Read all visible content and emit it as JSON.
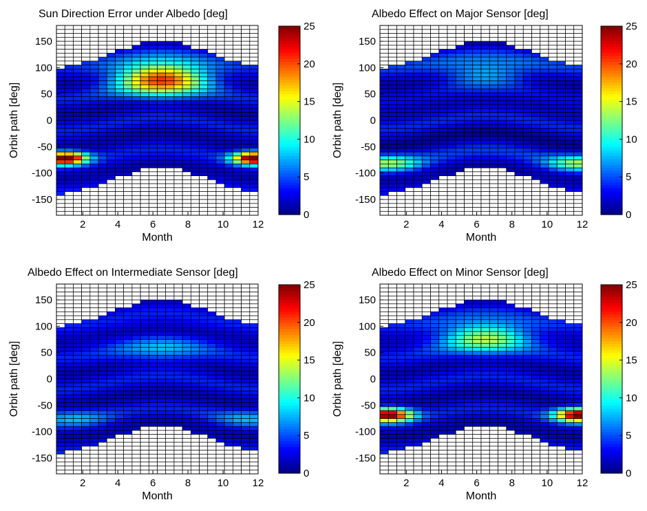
{
  "chart_data": [
    {
      "type": "heatmap",
      "title": "Sun Direction Error under Albedo [deg]",
      "xlabel": "Month",
      "ylabel": "Orbit path [deg]",
      "xlim": [
        0.5,
        12
      ],
      "ylim": [
        -180,
        180
      ],
      "xticks": [
        2,
        4,
        6,
        8,
        10,
        12
      ],
      "yticks": [
        150,
        100,
        50,
        0,
        -50,
        -100,
        -150
      ],
      "colorbar": {
        "range": [
          0,
          25
        ],
        "ticks": [
          0,
          5,
          10,
          15,
          20,
          25
        ],
        "colormap": "jet"
      },
      "grid": true,
      "band": {
        "lower_deg": {
          "jan": -140,
          "jul": -90
        },
        "upper_deg": {
          "jan": 100,
          "jul": 150
        }
      },
      "features": [
        {
          "month": 6.5,
          "orbit_deg": 80,
          "value": 18,
          "month_width": 2.6,
          "orbit_width": 32
        },
        {
          "month": 1.0,
          "orbit_deg": -72,
          "value": 24,
          "month_width": 1.2,
          "orbit_width": 12
        },
        {
          "month": 11.8,
          "orbit_deg": -72,
          "value": 24,
          "month_width": 1.2,
          "orbit_width": 12
        }
      ]
    },
    {
      "type": "heatmap",
      "title": "Albedo Effect on Major Sensor [deg]",
      "xlabel": "Month",
      "ylabel": "Orbit path [deg]",
      "xlim": [
        0.5,
        12
      ],
      "ylim": [
        -180,
        180
      ],
      "xticks": [
        2,
        4,
        6,
        8,
        10,
        12
      ],
      "yticks": [
        150,
        100,
        50,
        0,
        -50,
        -100,
        -150
      ],
      "colorbar": {
        "range": [
          0,
          25
        ],
        "ticks": [
          0,
          5,
          10,
          15,
          20,
          25
        ],
        "colormap": "jet"
      },
      "grid": true,
      "band": {
        "lower_deg": {
          "jan": -140,
          "jul": -90
        },
        "upper_deg": {
          "jan": 100,
          "jul": 150
        }
      },
      "features": [
        {
          "month": 6.5,
          "orbit_deg": 90,
          "value": 6,
          "month_width": 2.6,
          "orbit_width": 25
        },
        {
          "month": 1.0,
          "orbit_deg": -82,
          "value": 9,
          "month_width": 1.8,
          "orbit_width": 15
        },
        {
          "month": 11.8,
          "orbit_deg": -82,
          "value": 9,
          "month_width": 1.8,
          "orbit_width": 15
        }
      ]
    },
    {
      "type": "heatmap",
      "title": "Albedo Effect on Intermediate Sensor [deg]",
      "xlabel": "Month",
      "ylabel": "Orbit path [deg]",
      "xlim": [
        0.5,
        12
      ],
      "ylim": [
        -180,
        180
      ],
      "xticks": [
        2,
        4,
        6,
        8,
        10,
        12
      ],
      "yticks": [
        150,
        100,
        50,
        0,
        -50,
        -100,
        -150
      ],
      "colorbar": {
        "range": [
          0,
          25
        ],
        "ticks": [
          0,
          5,
          10,
          15,
          20,
          25
        ],
        "colormap": "jet"
      },
      "grid": true,
      "band": {
        "lower_deg": {
          "jan": -140,
          "jul": -90
        },
        "upper_deg": {
          "jan": 100,
          "jul": 150
        }
      },
      "features": [
        {
          "month": 6.5,
          "orbit_deg": 55,
          "value": 4.5,
          "month_width": 2.6,
          "orbit_width": 25
        },
        {
          "month": 1.5,
          "orbit_deg": -75,
          "value": 4,
          "month_width": 2,
          "orbit_width": 18
        },
        {
          "month": 11.5,
          "orbit_deg": -75,
          "value": 4,
          "month_width": 2,
          "orbit_width": 18
        }
      ]
    },
    {
      "type": "heatmap",
      "title": "Albedo Effect on Minor Sensor [deg]",
      "xlabel": "Month",
      "ylabel": "Orbit path [deg]",
      "xlim": [
        0.5,
        12
      ],
      "ylim": [
        -180,
        180
      ],
      "xticks": [
        2,
        4,
        6,
        8,
        10,
        12
      ],
      "yticks": [
        150,
        100,
        50,
        0,
        -50,
        -100,
        -150
      ],
      "colorbar": {
        "range": [
          0,
          25
        ],
        "ticks": [
          0,
          5,
          10,
          15,
          20,
          25
        ],
        "colormap": "jet"
      },
      "grid": true,
      "band": {
        "lower_deg": {
          "jan": -140,
          "jul": -90
        },
        "upper_deg": {
          "jan": 100,
          "jul": 150
        }
      },
      "features": [
        {
          "month": 6.5,
          "orbit_deg": 80,
          "value": 11,
          "month_width": 2.6,
          "orbit_width": 30
        },
        {
          "month": 1.0,
          "orbit_deg": -68,
          "value": 23,
          "month_width": 1.3,
          "orbit_width": 13
        },
        {
          "month": 11.8,
          "orbit_deg": -68,
          "value": 23,
          "month_width": 1.3,
          "orbit_width": 13
        }
      ]
    }
  ]
}
